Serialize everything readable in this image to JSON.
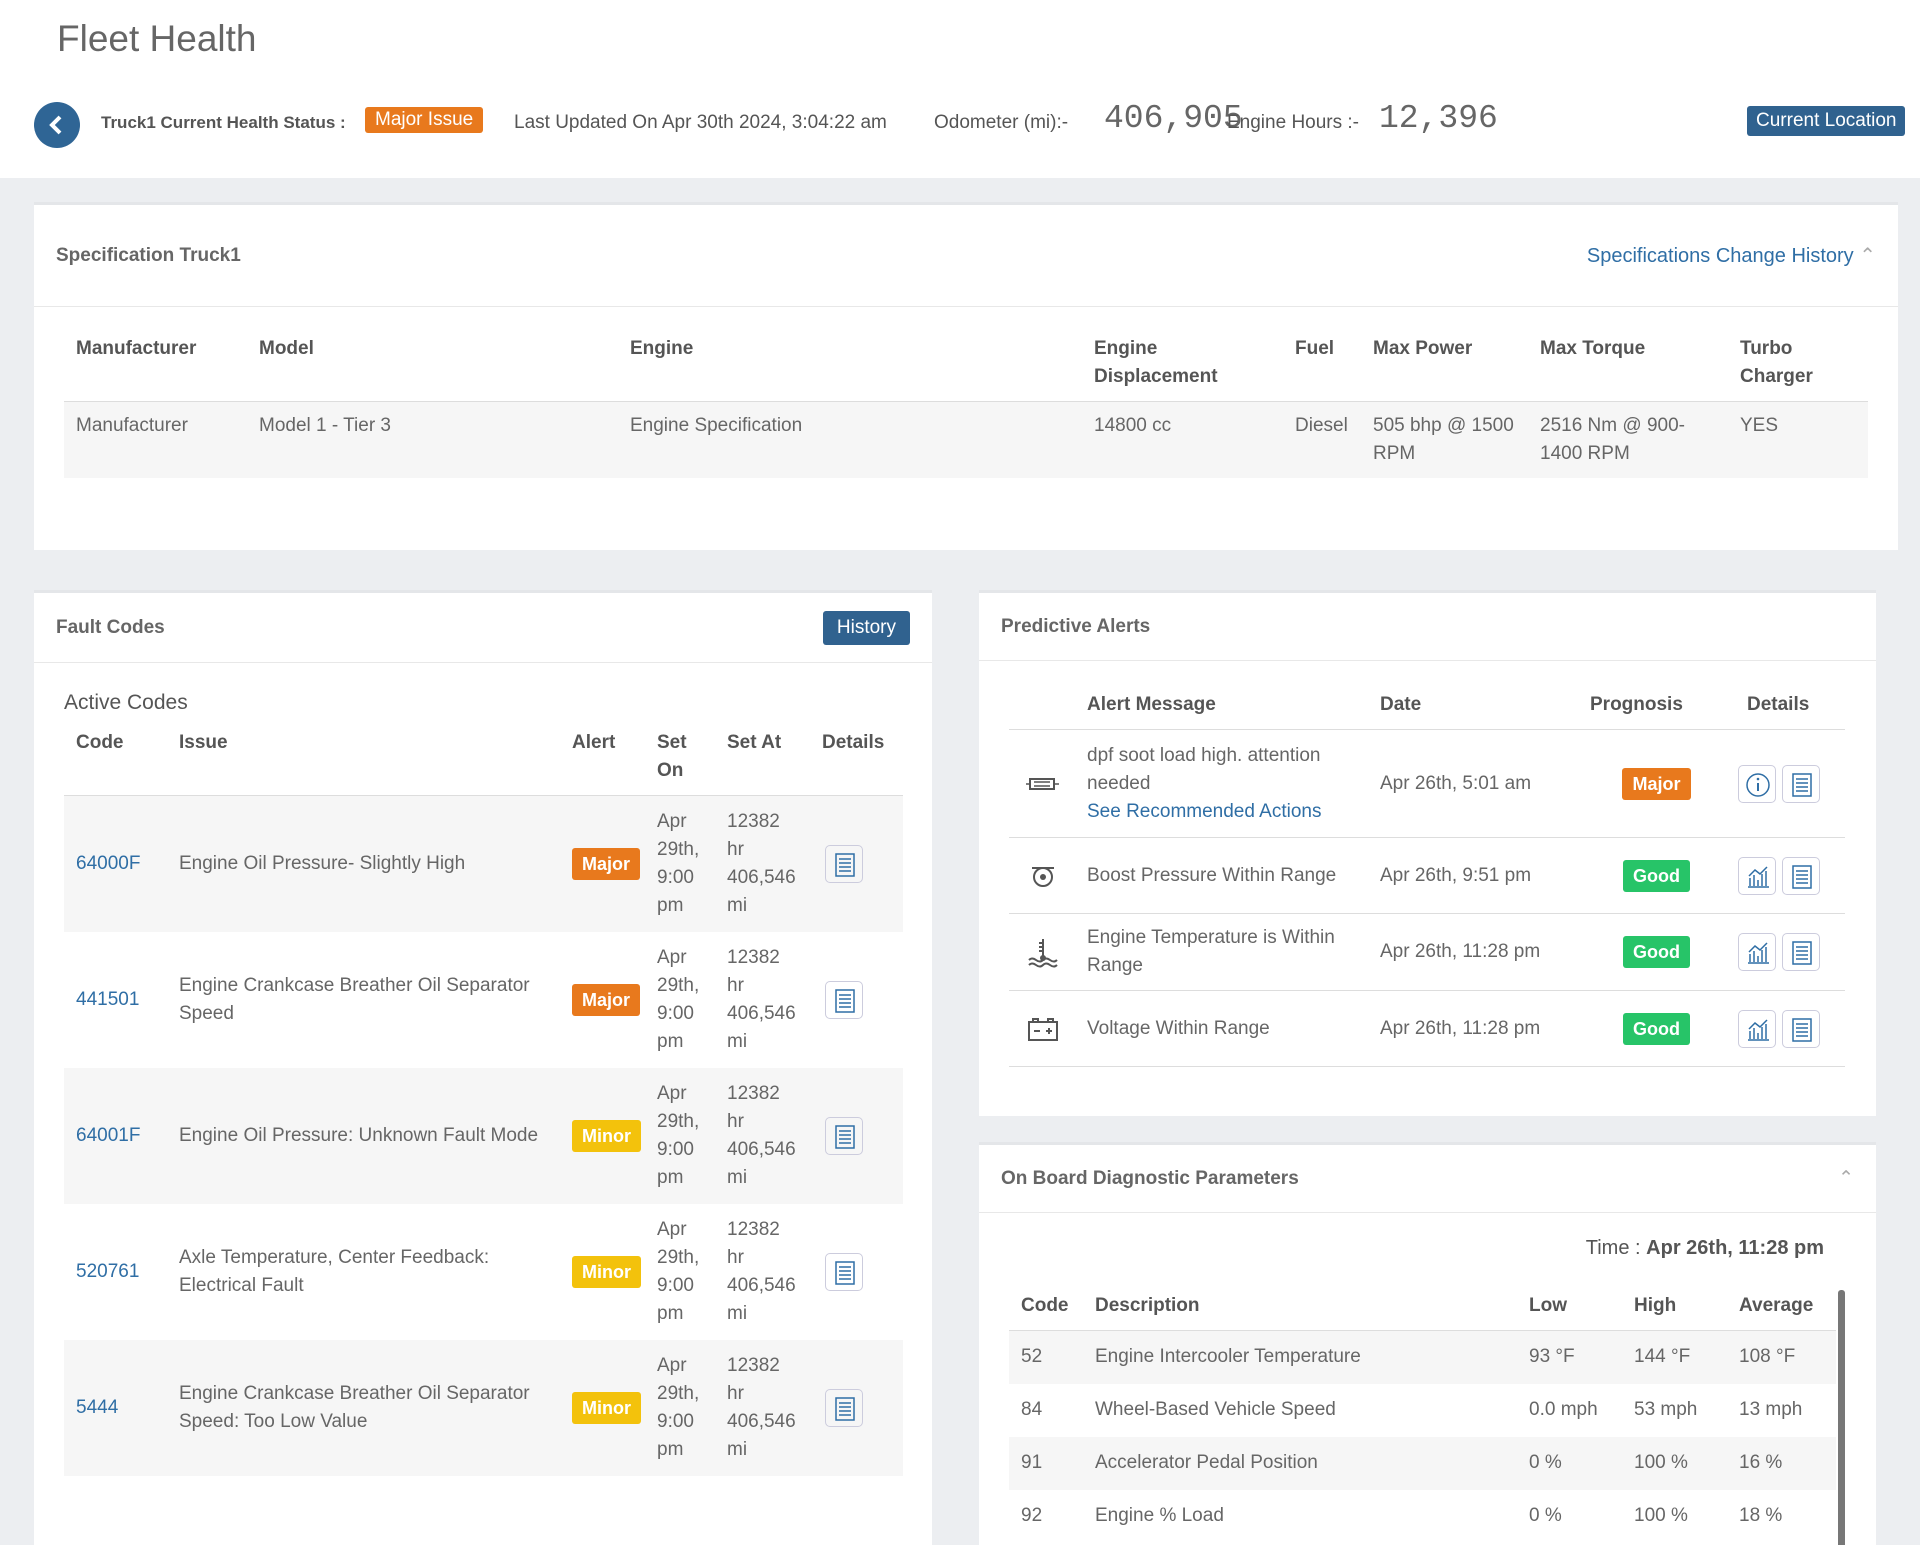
{
  "header": {
    "title": "Fleet Health",
    "status_label": "Truck1 Current Health Status :",
    "status": "Major Issue",
    "last_updated": "Last Updated On Apr 30th 2024, 3:04:22 am",
    "odometer_label": "Odometer (mi):-",
    "odometer": "406,905",
    "engine_hours_label": "Engine Hours :-",
    "engine_hours": "12,396",
    "location_button": "Current Location"
  },
  "specification": {
    "title": "Specification Truck1",
    "history_link": "Specifications Change History",
    "columns": [
      "Manufacturer",
      "Model",
      "Engine",
      "Engine Displacement",
      "Fuel",
      "Max Power",
      "Max Torque",
      "Turbo Charger"
    ],
    "rows": [
      [
        "Manufacturer",
        "Model 1 - Tier 3",
        "Engine Specification",
        "14800 cc",
        "Diesel",
        "505 bhp @ 1500 RPM",
        "2516 Nm @ 900-1400 RPM",
        "YES"
      ]
    ]
  },
  "fault_codes": {
    "title": "Fault Codes",
    "history_button": "History",
    "subtitle": "Active Codes",
    "columns": [
      "Code",
      "Issue",
      "Alert",
      "Set On",
      "Set At",
      "Details"
    ],
    "rows": [
      {
        "code": "64000F",
        "issue": "Engine Oil Pressure- Slightly High",
        "alert": "Major",
        "set_on": "Apr 29th, 9:00 pm",
        "set_at": "12382 hr 406,546 mi"
      },
      {
        "code": "441501",
        "issue": "Engine Crankcase Breather Oil Separator Speed",
        "alert": "Major",
        "set_on": "Apr 29th, 9:00 pm",
        "set_at": "12382 hr 406,546 mi"
      },
      {
        "code": "64001F",
        "issue": "Engine Oil Pressure: Unknown Fault Mode",
        "alert": "Minor",
        "set_on": "Apr 29th, 9:00 pm",
        "set_at": "12382 hr 406,546 mi"
      },
      {
        "code": "520761",
        "issue": "Axle Temperature, Center Feedback: Electrical Fault",
        "alert": "Minor",
        "set_on": "Apr 29th, 9:00 pm",
        "set_at": "12382 hr 406,546 mi"
      },
      {
        "code": "5444",
        "issue": "Engine Crankcase Breather Oil Separator Speed: Too Low Value",
        "alert": "Minor",
        "set_on": "Apr 29th, 9:00 pm",
        "set_at": "12382 hr 406,546 mi"
      }
    ]
  },
  "predictive_alerts": {
    "title": "Predictive Alerts",
    "columns": [
      "Alert Message",
      "Date",
      "Prognosis",
      "Details"
    ],
    "rows": [
      {
        "message": "dpf soot load high. attention needed",
        "action": "See Recommended Actions",
        "date": "Apr 26th, 5:01 am",
        "prognosis": "Major"
      },
      {
        "message": "Boost Pressure Within Range",
        "date": "Apr 26th, 9:51 pm",
        "prognosis": "Good"
      },
      {
        "message": "Engine Temperature is Within Range",
        "date": "Apr 26th, 11:28 pm",
        "prognosis": "Good"
      },
      {
        "message": "Voltage Within Range",
        "date": "Apr 26th, 11:28 pm",
        "prognosis": "Good"
      }
    ]
  },
  "obd": {
    "title": "On Board Diagnostic Parameters",
    "time_label": "Time :",
    "time": "Apr 26th, 11:28 pm",
    "columns": [
      "Code",
      "Description",
      "Low",
      "High",
      "Average"
    ],
    "rows": [
      [
        "52",
        "Engine Intercooler Temperature",
        "93 °F",
        "144 °F",
        "108 °F"
      ],
      [
        "84",
        "Wheel-Based Vehicle Speed",
        "0.0 mph",
        "53 mph",
        "13 mph"
      ],
      [
        "91",
        "Accelerator Pedal Position",
        "0 %",
        "100 %",
        "16 %"
      ],
      [
        "92",
        "Engine % Load",
        "0 %",
        "100 %",
        "18 %"
      ]
    ]
  }
}
